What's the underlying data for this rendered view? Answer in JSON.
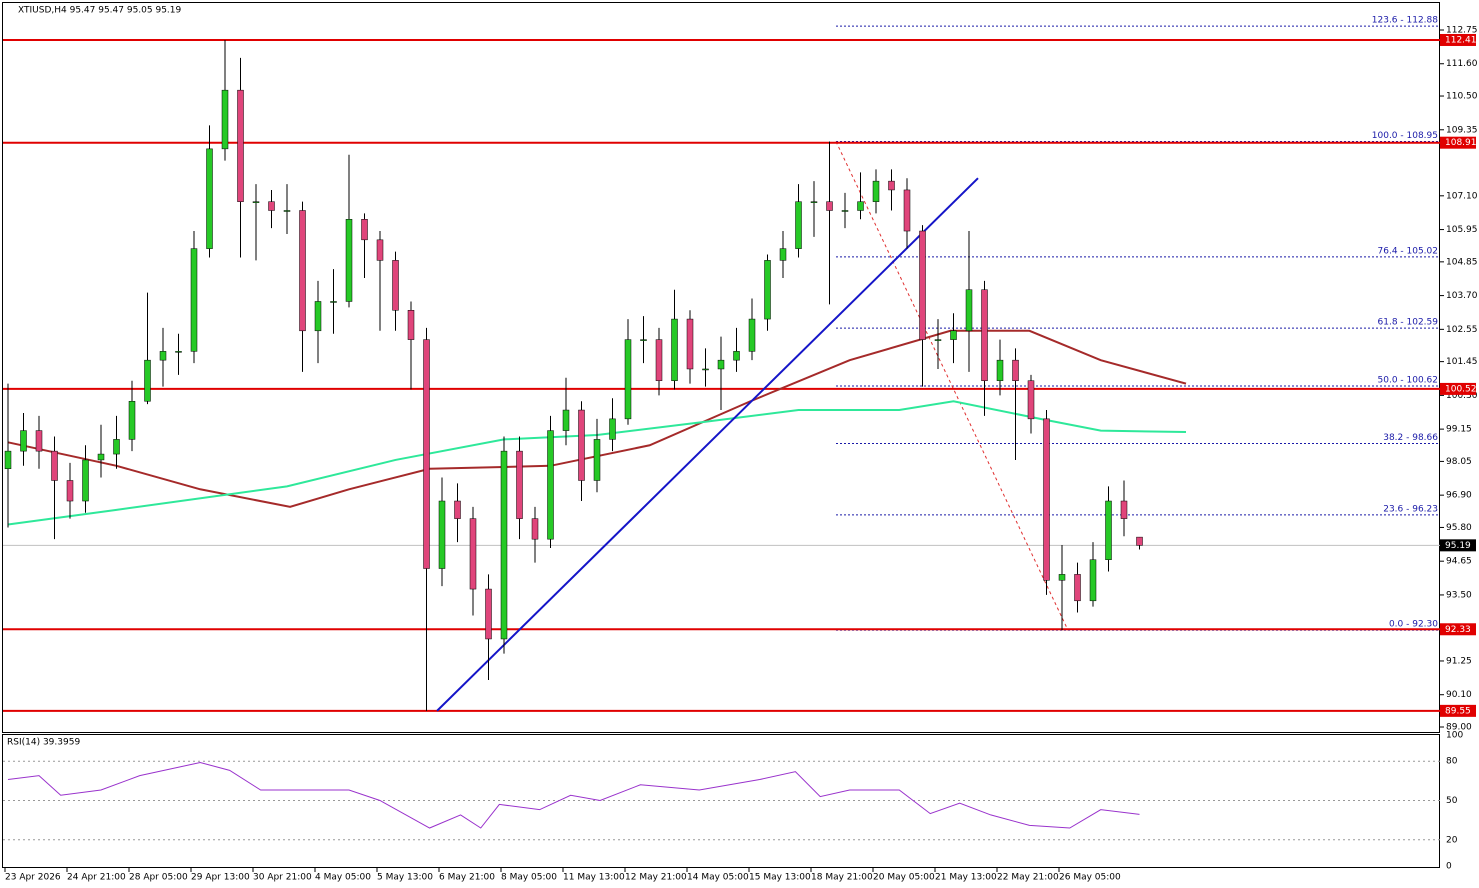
{
  "chart_data": {
    "type": "candlestick",
    "title": "XTIUSD,H4  95.47 95.47 95.05 95.19",
    "rsi_title": "RSI(14) 39.3959",
    "ylim": [
      89.0,
      112.75
    ],
    "yticks": [
      112.75,
      {
        "value": 111.6,
        "label": "111.60"
      },
      {
        "value": 110.5,
        "label": "110.50"
      },
      109.35,
      {
        "value": 107.1,
        "label": "107.10"
      },
      105.95,
      104.85,
      {
        "value": 103.7,
        "label": "103.70"
      },
      102.55,
      101.45,
      {
        "value": 100.3,
        "label": "100.30"
      },
      99.15,
      98.05,
      {
        "value": 96.9,
        "label": "96.90"
      },
      {
        "value": 95.8,
        "label": "95.80"
      },
      94.65,
      {
        "value": 93.5,
        "label": "93.50"
      },
      91.25,
      {
        "value": 90.1,
        "label": "90.10"
      },
      {
        "value": 89.0,
        "label": "89.00"
      }
    ],
    "x_labels": [
      "23 Apr 2026",
      "24 Apr 21:00",
      "28 Apr 05:00",
      "29 Apr 13:00",
      "30 Apr 21:00",
      "4 May 05:00",
      "5 May 13:00",
      "6 May 21:00",
      "8 May 05:00",
      "11 May 13:00",
      "12 May 21:00",
      "14 May 05:00",
      "15 May 13:00",
      "18 May 21:00",
      "20 May 05:00",
      "21 May 13:00",
      "22 May 21:00",
      "26 May 05:00"
    ],
    "open": [
      97.8,
      98.4,
      99.1,
      98.4,
      97.4,
      96.7,
      98.1,
      98.3,
      98.8,
      100.1,
      101.5,
      101.8,
      101.8,
      105.3,
      108.7,
      110.7,
      106.9,
      106.9,
      106.6,
      106.6,
      102.5,
      103.5,
      103.5,
      106.3,
      105.6,
      104.9,
      103.2,
      102.2,
      94.4,
      96.7,
      96.1,
      93.7,
      92.0,
      98.4,
      96.1,
      95.4,
      99.1,
      99.8,
      97.4,
      98.8,
      99.5,
      102.2,
      102.2,
      100.8,
      102.9,
      101.2,
      101.2,
      101.5,
      101.8,
      102.9,
      104.9,
      105.3,
      106.9,
      106.9,
      106.6,
      106.6,
      106.9,
      107.6,
      107.3,
      105.9,
      102.2,
      102.2,
      102.5,
      103.9,
      100.8,
      101.5,
      100.8,
      99.5,
      94.0,
      94.2,
      93.3,
      94.7,
      96.7,
      95.47
    ],
    "high": [
      100.7,
      99.7,
      99.6,
      98.9,
      98.0,
      98.6,
      99.3,
      99.6,
      100.8,
      103.8,
      102.6,
      102.4,
      105.9,
      109.5,
      112.41,
      111.8,
      107.5,
      107.3,
      107.5,
      106.9,
      104.2,
      104.6,
      108.5,
      106.5,
      105.9,
      105.2,
      103.5,
      102.6,
      97.5,
      97.3,
      96.5,
      94.2,
      98.9,
      98.9,
      96.5,
      99.6,
      100.9,
      100.1,
      99.5,
      100.2,
      102.9,
      103.0,
      102.6,
      103.9,
      103.2,
      101.9,
      102.3,
      102.6,
      103.6,
      105.1,
      105.9,
      107.5,
      107.6,
      108.95,
      107.2,
      107.9,
      108.0,
      108.0,
      107.7,
      106.1,
      102.9,
      103.1,
      105.9,
      104.2,
      102.2,
      101.9,
      101.0,
      99.8,
      95.2,
      94.6,
      95.3,
      97.2,
      97.4,
      95.47
    ],
    "low": [
      95.8,
      97.9,
      97.8,
      95.4,
      96.1,
      96.3,
      97.5,
      97.8,
      98.4,
      100.0,
      100.6,
      101.0,
      101.4,
      105.0,
      108.3,
      105.0,
      104.9,
      106.0,
      105.8,
      101.1,
      101.4,
      102.4,
      103.3,
      104.3,
      102.5,
      102.5,
      100.5,
      89.55,
      93.8,
      95.3,
      92.8,
      90.6,
      91.5,
      95.4,
      94.6,
      95.1,
      98.6,
      96.7,
      97.0,
      98.4,
      99.3,
      101.4,
      100.3,
      100.5,
      100.7,
      100.6,
      99.8,
      101.1,
      101.5,
      102.5,
      104.3,
      105.0,
      105.7,
      103.4,
      106.0,
      106.3,
      106.5,
      106.6,
      105.3,
      100.6,
      101.2,
      101.4,
      101.1,
      99.6,
      100.3,
      98.1,
      99.0,
      93.5,
      92.3,
      92.9,
      93.1,
      94.3,
      95.5,
      95.05
    ],
    "close": [
      98.4,
      99.1,
      98.4,
      97.4,
      96.7,
      98.1,
      98.3,
      98.8,
      100.1,
      101.5,
      101.8,
      101.8,
      105.3,
      108.7,
      110.7,
      106.9,
      106.9,
      106.6,
      106.6,
      102.5,
      103.5,
      103.5,
      106.3,
      105.6,
      104.9,
      103.2,
      102.2,
      94.4,
      96.7,
      96.1,
      93.7,
      92.0,
      98.4,
      96.1,
      95.4,
      99.1,
      99.8,
      97.4,
      98.8,
      99.5,
      102.2,
      102.2,
      100.8,
      102.9,
      101.2,
      101.2,
      101.5,
      101.8,
      102.9,
      104.9,
      105.3,
      106.9,
      106.9,
      106.6,
      106.6,
      106.9,
      107.6,
      107.3,
      105.9,
      102.2,
      102.2,
      102.5,
      103.9,
      100.8,
      101.5,
      100.8,
      99.5,
      94.0,
      94.2,
      93.3,
      94.7,
      96.7,
      96.1,
      95.19
    ],
    "up_color": "#26c926",
    "down_color": "#e0457b",
    "ma_fast": {
      "color": "#2ee89a",
      "x": [
        0,
        7,
        18,
        25,
        32,
        38,
        45,
        51,
        57.5,
        61,
        66.6,
        70.5,
        76
      ],
      "values": [
        95.9,
        96.4,
        97.2,
        98.1,
        98.8,
        98.95,
        99.4,
        99.8,
        99.8,
        100.1,
        99.5,
        99.1,
        99.05
      ]
    },
    "ma_slow": {
      "color": "#a52a2a",
      "x": [
        0,
        7,
        12.4,
        18.2,
        22,
        27.2,
        35,
        41.4,
        47.9,
        54.3,
        60.8,
        65.9,
        70.5,
        76
      ],
      "values": [
        98.7,
        97.9,
        97.1,
        96.5,
        97.1,
        97.8,
        97.9,
        98.6,
        100.1,
        101.5,
        102.5,
        102.5,
        101.5,
        100.7
      ]
    },
    "levels": [
      {
        "value": 112.41,
        "label": "112.41"
      },
      {
        "value": 108.91,
        "label": "108.91"
      },
      {
        "value": 100.52,
        "label": "100.52"
      },
      {
        "value": 92.33,
        "label": "92.33"
      },
      {
        "value": 89.55,
        "label": "89.55"
      }
    ],
    "fib": [
      {
        "price": 112.88,
        "label": "123.6 - 112.88"
      },
      {
        "price": 108.95,
        "label": "100.0 - 108.95"
      },
      {
        "price": 105.02,
        "label": "76.4 - 105.02"
      },
      {
        "price": 102.59,
        "label": "61.8 - 102.59"
      },
      {
        "price": 100.62,
        "label": "50.0 - 100.62"
      },
      {
        "price": 98.66,
        "label": "38.2 - 98.66"
      },
      {
        "price": 96.23,
        "label": "23.6 - 96.23"
      },
      {
        "price": 92.3,
        "label": "0.0 - 92.30"
      }
    ],
    "trendline": [
      89.55,
      107.7
    ],
    "current": {
      "value": 95.19,
      "label": "95.19"
    },
    "rsi": {
      "ylim": [
        0,
        100
      ],
      "yticks": [
        100,
        80,
        50,
        20,
        0
      ],
      "x": [
        0,
        2,
        3.4,
        6,
        8.5,
        12.4,
        14.3,
        16.3,
        18.8,
        22,
        24,
        27.2,
        29.2,
        30.5,
        31.7,
        34.3,
        36.3,
        38.2,
        40.8,
        44.6,
        48.5,
        50.8,
        52.4,
        54.3,
        57.5,
        59.5,
        61.4,
        63.4,
        65.9,
        68.5,
        70.5,
        73
      ],
      "values": [
        66,
        69,
        54,
        58,
        69,
        79,
        73,
        58,
        58,
        58,
        50,
        29,
        39,
        29,
        47,
        43,
        54,
        50,
        62,
        58,
        66,
        72,
        53,
        58,
        58,
        40,
        48,
        39,
        31,
        29,
        43,
        39.3959
      ],
      "color": "#9932cc"
    }
  }
}
